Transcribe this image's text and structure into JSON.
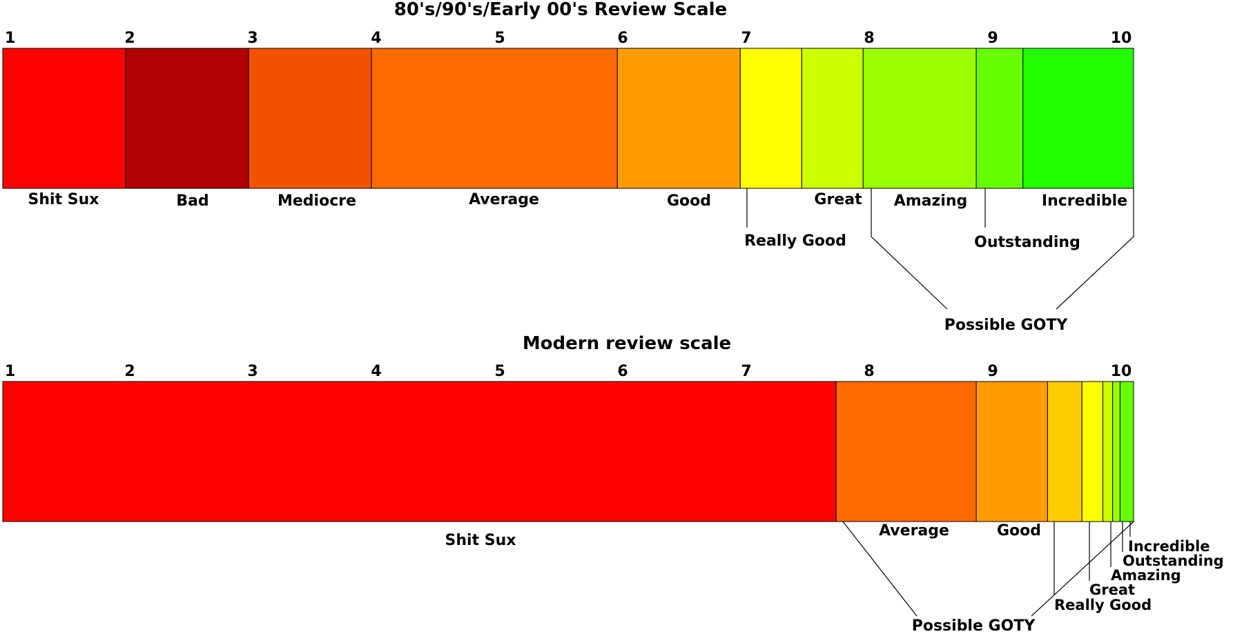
{
  "scales": [
    {
      "title": "80's/90's/Early 00's Review Scale",
      "ticks": [
        "1",
        "2",
        "3",
        "4",
        "5",
        "6",
        "7",
        "8",
        "9",
        "10"
      ],
      "segments": [
        {
          "label": "Shit Sux",
          "start": 1.0,
          "end": 2.0,
          "color": "#FF0000"
        },
        {
          "label": "Bad",
          "start": 2.0,
          "end": 3.0,
          "color": "#B00000"
        },
        {
          "label": "Mediocre",
          "start": 3.0,
          "end": 4.0,
          "color": "#F25200"
        },
        {
          "label": "Average",
          "start": 4.0,
          "end": 6.0,
          "color": "#FF6A00"
        },
        {
          "label": "Good",
          "start": 6.0,
          "end": 7.0,
          "color": "#FF9C00"
        },
        {
          "label": "Really Good",
          "start": 7.0,
          "end": 7.5,
          "color": "#FFFF00"
        },
        {
          "label": "Great",
          "start": 7.5,
          "end": 8.0,
          "color": "#CCFF00"
        },
        {
          "label": "Amazing",
          "start": 8.0,
          "end": 8.92,
          "color": "#99FF00"
        },
        {
          "label": "Outstanding",
          "start": 8.92,
          "end": 9.3,
          "color": "#66FF00"
        },
        {
          "label": "Incredible",
          "start": 9.3,
          "end": 10.2,
          "color": "#22FF00"
        }
      ],
      "bracket_label": "Possible GOTY",
      "bracket_range": [
        8.0,
        10.2
      ]
    },
    {
      "title": "Modern review scale",
      "ticks": [
        "1",
        "2",
        "3",
        "4",
        "5",
        "6",
        "7",
        "8",
        "9",
        "10"
      ],
      "segments": [
        {
          "label": "Shit Sux",
          "start": 1.0,
          "end": 7.78,
          "color": "#FF0000"
        },
        {
          "label": "Average",
          "start": 7.78,
          "end": 8.92,
          "color": "#FF6A00"
        },
        {
          "label": "Good",
          "start": 8.92,
          "end": 9.5,
          "color": "#FF9C00"
        },
        {
          "label": "Really Good",
          "start": 9.5,
          "end": 9.78,
          "color": "#FFCC00"
        },
        {
          "label": "Great",
          "start": 9.78,
          "end": 9.95,
          "color": "#FFFF00"
        },
        {
          "label": "Amazing",
          "start": 9.95,
          "end": 10.03,
          "color": "#CCFF00"
        },
        {
          "label": "Outstanding",
          "start": 10.03,
          "end": 10.09,
          "color": "#99FF00"
        },
        {
          "label": "Incredible",
          "start": 10.09,
          "end": 10.2,
          "color": "#66FF00"
        }
      ],
      "bracket_label": "Possible GOTY",
      "bracket_range": [
        7.78,
        10.2
      ]
    }
  ]
}
